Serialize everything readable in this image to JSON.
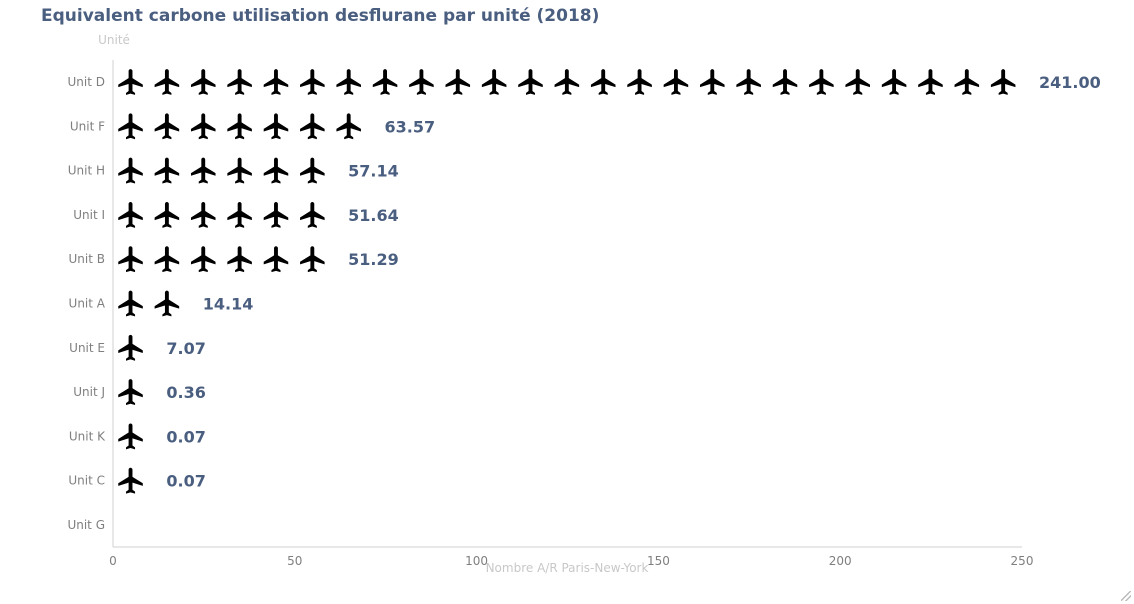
{
  "chart_data": {
    "type": "bar",
    "title": "Equivalent carbone utilisation desflurane par unité (2018)",
    "ylabel": "Unité",
    "xlabel": "Nombre A/R Paris-New-York",
    "categories": [
      "Unit D",
      "Unit F",
      "Unit H",
      "Unit I",
      "Unit B",
      "Unit A",
      "Unit E",
      "Unit J",
      "Unit K",
      "Unit C",
      "Unit G"
    ],
    "values": [
      241.0,
      63.57,
      57.14,
      51.64,
      51.29,
      14.14,
      7.07,
      0.36,
      0.07,
      0.07,
      0
    ],
    "value_labels": [
      "241.00",
      "63.57",
      "57.14",
      "51.64",
      "51.29",
      "14.14",
      "7.07",
      "0.36",
      "0.07",
      "0.07",
      ""
    ],
    "xlim": [
      0,
      250
    ],
    "x_ticks": [
      "0",
      "50",
      "100",
      "150",
      "200",
      "250"
    ],
    "symbol_unit": 10,
    "grid": false,
    "colors": {
      "title": "#4a5e80",
      "label": "#4a5e80",
      "axis_text": "#7f7f7f",
      "axis_title": "#c8c8c8",
      "icon": "#000000",
      "axis_line": "#d0d0d0"
    },
    "icon": "airplane-icon"
  }
}
